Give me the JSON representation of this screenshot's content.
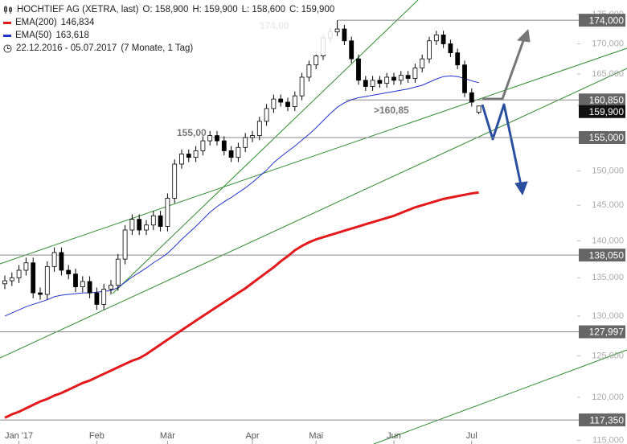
{
  "header": {
    "title": "HOCHTIEF AG (XETRA, last)",
    "ohlc": [
      "O: 158,900",
      "H: 159,900",
      "L: 158,600",
      "C: 159,900"
    ],
    "period": "22.12.2016 - 05.07.2017",
    "span": "(7 Monate, 1 Tag)"
  },
  "chart_data": {
    "type": "candlestick",
    "log_scale": true,
    "ylim": [
      114600,
      177500
    ],
    "yticks": [
      {
        "value": 115000,
        "label": "115,000"
      },
      {
        "value": 120000,
        "label": "120,000"
      },
      {
        "value": 125000,
        "label": "125,000"
      },
      {
        "value": 130000,
        "label": "130,000"
      },
      {
        "value": 135000,
        "label": "135,000"
      },
      {
        "value": 140000,
        "label": "140,000"
      },
      {
        "value": 145000,
        "label": "145,000"
      },
      {
        "value": 150000,
        "label": "150,000"
      },
      {
        "value": 155000,
        "label": "155,000"
      },
      {
        "value": 160000,
        "label": "160,000"
      },
      {
        "value": 165000,
        "label": "165,000"
      },
      {
        "value": 170000,
        "label": "170,000"
      },
      {
        "value": 175000,
        "label": "175,000"
      }
    ],
    "categories": [
      null,
      null,
      "Jan '17",
      null,
      null,
      null,
      null,
      null,
      null,
      null,
      null,
      null,
      null,
      "Feb",
      null,
      null,
      null,
      null,
      null,
      null,
      null,
      null,
      null,
      "Mär",
      null,
      null,
      null,
      null,
      null,
      null,
      null,
      null,
      null,
      null,
      null,
      "Apr",
      null,
      null,
      null,
      null,
      null,
      null,
      null,
      null,
      "Mai",
      null,
      null,
      null,
      null,
      null,
      null,
      null,
      null,
      null,
      null,
      "Jun",
      null,
      null,
      null,
      null,
      null,
      null,
      null,
      null,
      null,
      null,
      "Jul",
      null
    ],
    "open": [
      134200,
      134600,
      135000,
      136000,
      137000,
      133000,
      132800,
      136500,
      138400,
      136000,
      135500,
      133800,
      134500,
      133000,
      131500,
      133500,
      134000,
      137500,
      141500,
      143000,
      141500,
      142200,
      143500,
      142000,
      146000,
      151000,
      152500,
      152000,
      153000,
      154500,
      155300,
      154500,
      153000,
      152000,
      153500,
      155000,
      155300,
      157500,
      159500,
      161000,
      160500,
      159800,
      161500,
      164500,
      166500,
      168000,
      171000,
      172000,
      172500,
      170500,
      167500,
      164000,
      163000,
      164000,
      163500,
      164500,
      164000,
      164800,
      164300,
      166000,
      167500,
      170500,
      171500,
      170000,
      168500,
      166500,
      162000,
      158900
    ],
    "high": [
      135300,
      135700,
      136700,
      137700,
      137700,
      133700,
      137200,
      139100,
      139100,
      136700,
      136200,
      135200,
      135200,
      133700,
      134200,
      134700,
      138200,
      142200,
      143700,
      143700,
      142900,
      144200,
      144200,
      146700,
      151700,
      153200,
      153200,
      153700,
      155200,
      156000,
      156000,
      155200,
      153700,
      154200,
      155700,
      156000,
      158200,
      160200,
      161700,
      161700,
      161200,
      162200,
      165200,
      167200,
      168700,
      171700,
      172700,
      174000,
      173200,
      171200,
      168200,
      164700,
      164700,
      164700,
      165200,
      165200,
      165500,
      165500,
      166700,
      168200,
      171200,
      172200,
      172200,
      170700,
      169200,
      167200,
      162700,
      159900
    ],
    "low": [
      133500,
      133900,
      134300,
      135300,
      132300,
      132100,
      132100,
      135800,
      135300,
      134800,
      133100,
      133100,
      132300,
      130800,
      130800,
      132800,
      133300,
      136800,
      140800,
      140800,
      140800,
      141500,
      141300,
      141300,
      145300,
      150300,
      151300,
      151300,
      152300,
      153800,
      153800,
      152300,
      151300,
      151300,
      152800,
      154300,
      154600,
      156800,
      158800,
      159800,
      159100,
      159100,
      160800,
      163800,
      165800,
      167300,
      170300,
      171300,
      169800,
      166800,
      163300,
      162300,
      162300,
      162800,
      162800,
      163300,
      163300,
      163600,
      163600,
      165300,
      166800,
      169800,
      169300,
      167800,
      165800,
      161300,
      159800,
      158600
    ],
    "close": [
      134600,
      135000,
      136000,
      137000,
      133000,
      132800,
      136500,
      138400,
      136000,
      135500,
      133800,
      134500,
      133000,
      131500,
      133500,
      134000,
      137500,
      141500,
      143000,
      141500,
      142200,
      143500,
      142000,
      146000,
      151000,
      152500,
      152000,
      153000,
      154500,
      155300,
      154500,
      153000,
      152000,
      153500,
      155000,
      155300,
      157500,
      159500,
      161000,
      160500,
      159800,
      161500,
      164500,
      166500,
      168000,
      171000,
      172000,
      172500,
      170500,
      167500,
      164000,
      163000,
      164000,
      163500,
      164500,
      164000,
      164800,
      164300,
      166000,
      167500,
      170500,
      171500,
      170000,
      168500,
      166500,
      162000,
      160500,
      159900
    ],
    "up_color": "#ffffff",
    "down_color": "#000000",
    "series": [
      {
        "name": "EMA(200)",
        "color": "#e31a1c",
        "last_label": "146,834",
        "values": [
          117600,
          118000,
          118300,
          118700,
          119100,
          119500,
          119800,
          120200,
          120500,
          120900,
          121300,
          121700,
          122000,
          122400,
          122800,
          123200,
          123600,
          124000,
          124400,
          124700,
          125200,
          125800,
          126400,
          127000,
          127600,
          128200,
          128800,
          129400,
          130000,
          130600,
          131200,
          131800,
          132400,
          133000,
          133600,
          134300,
          135000,
          135700,
          136400,
          137200,
          137900,
          138700,
          139300,
          139800,
          140200,
          140500,
          140800,
          141100,
          141400,
          141700,
          142000,
          142300,
          142600,
          142900,
          143200,
          143500,
          143900,
          144300,
          144700,
          145000,
          145300,
          145600,
          145900,
          146100,
          146300,
          146500,
          146700,
          146834
        ]
      },
      {
        "name": "EMA(50)",
        "color": "#2233cc",
        "last_label": "163,618",
        "values": [
          130000,
          130400,
          130800,
          131200,
          131500,
          131800,
          132100,
          132500,
          132700,
          132800,
          132900,
          133000,
          133000,
          133100,
          133200,
          133300,
          133700,
          134400,
          135100,
          135700,
          136300,
          137000,
          137600,
          138300,
          139200,
          140200,
          141100,
          142000,
          143000,
          144000,
          144800,
          145500,
          146100,
          146800,
          147500,
          148300,
          149200,
          150100,
          151200,
          152100,
          152900,
          153700,
          154600,
          155500,
          156500,
          157600,
          158700,
          159700,
          160400,
          160900,
          161200,
          161400,
          161600,
          161800,
          162000,
          162200,
          162400,
          162600,
          162900,
          163200,
          163700,
          164200,
          164600,
          164700,
          164600,
          164300,
          163900,
          163618
        ]
      }
    ],
    "levels": [
      {
        "value": 174000,
        "label": "174,000"
      },
      {
        "value": 160850,
        "label": "160,850"
      },
      {
        "value": 155000,
        "label": "155,000"
      },
      {
        "value": 138050,
        "label": "138,050"
      },
      {
        "value": 127997,
        "label": "127,997"
      },
      {
        "value": 117350,
        "label": "117,350"
      }
    ],
    "last_price": {
      "value": 159900,
      "label": "159,900"
    },
    "annotations": [
      "174,00",
      "155,00",
      ">160,85"
    ]
  }
}
